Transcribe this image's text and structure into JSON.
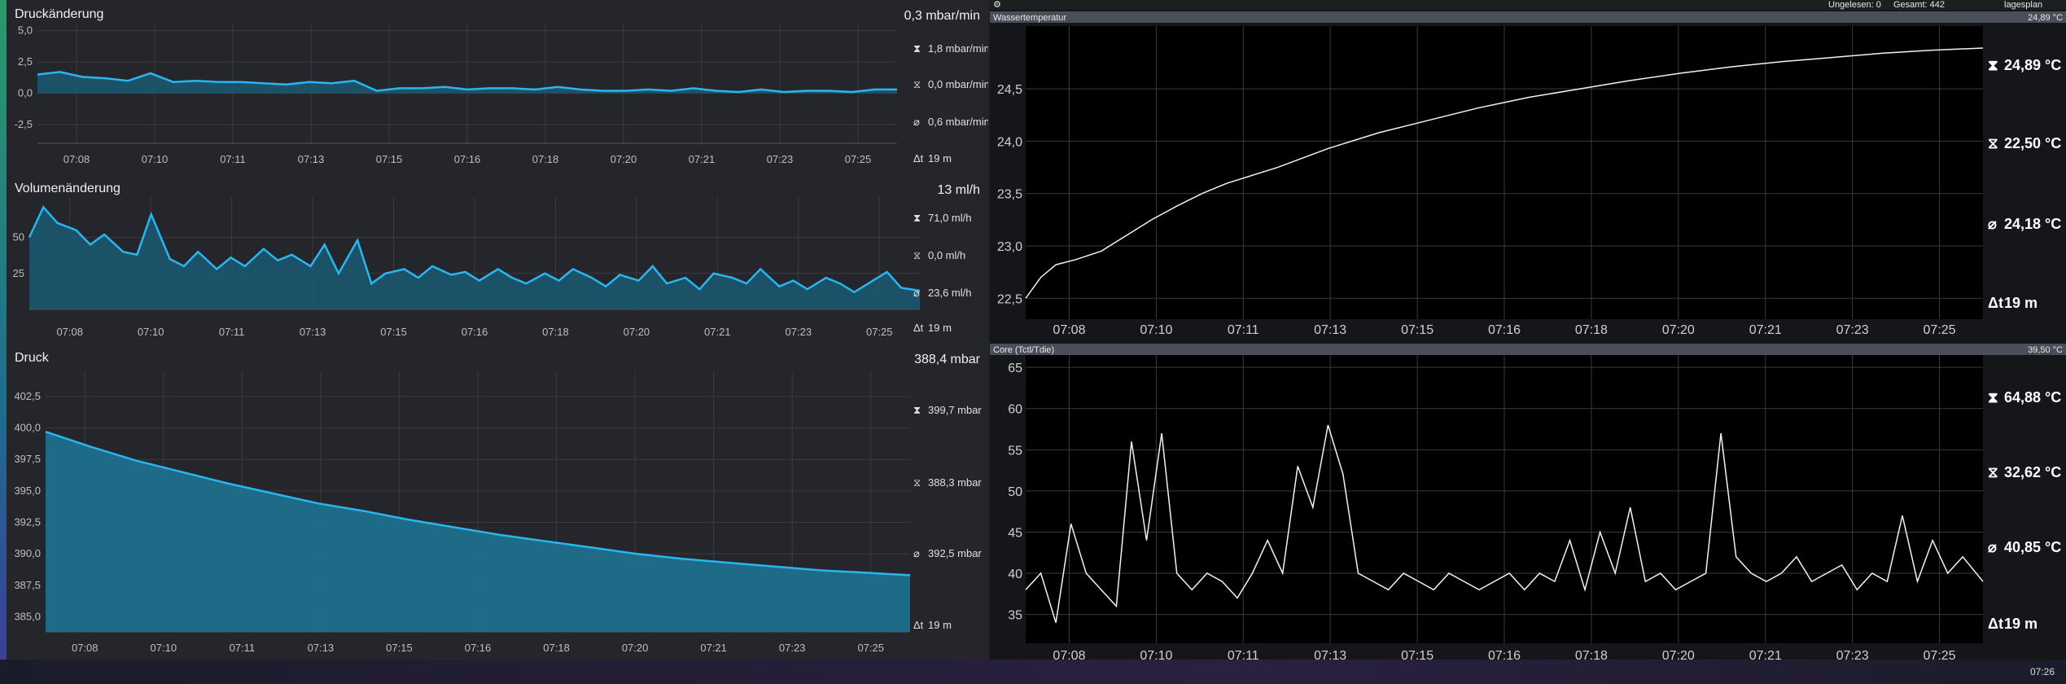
{
  "topbar": {
    "unread": "Ungelesen: 0",
    "total": "Gesamt: 442",
    "menu": "lagesplan"
  },
  "taskbar": {
    "clock": "07:26"
  },
  "chart_data": [
    {
      "type": "area",
      "title": "Druckänderung",
      "current": "0,3 mbar/min",
      "y_ticks": [
        "5,0",
        "2,5",
        "0,0",
        "-2,5"
      ],
      "ylim": [
        -4.0,
        5.5
      ],
      "x_ticks": [
        "07:08",
        "07:10",
        "07:11",
        "07:13",
        "07:15",
        "07:16",
        "07:18",
        "07:20",
        "07:21",
        "07:23",
        "07:25"
      ],
      "xlim": [
        0,
        19
      ],
      "stats": {
        "max": "1,8 mbar/min",
        "min": "0,0 mbar/min",
        "avg": "0,6 mbar/min",
        "span": "19 m"
      },
      "x": [
        0,
        0.5,
        1,
        1.5,
        2,
        2.5,
        3,
        3.5,
        4,
        4.5,
        5,
        5.5,
        6,
        6.5,
        7,
        7.5,
        8,
        8.5,
        9,
        9.5,
        10,
        10.5,
        11,
        11.5,
        12,
        12.5,
        13,
        13.5,
        14,
        14.5,
        15,
        15.5,
        16,
        16.5,
        17,
        17.5,
        18,
        18.5,
        19
      ],
      "values": [
        1.5,
        1.7,
        1.3,
        1.2,
        1.0,
        1.6,
        0.9,
        1.0,
        0.9,
        0.9,
        0.8,
        0.7,
        0.9,
        0.8,
        1.0,
        0.2,
        0.4,
        0.4,
        0.5,
        0.3,
        0.4,
        0.4,
        0.3,
        0.5,
        0.3,
        0.2,
        0.2,
        0.3,
        0.2,
        0.4,
        0.2,
        0.1,
        0.3,
        0.1,
        0.2,
        0.2,
        0.1,
        0.3,
        0.3
      ]
    },
    {
      "type": "area",
      "title": "Volumenänderung",
      "current": "13 ml/h",
      "y_ticks": [
        "50",
        "25"
      ],
      "ylim": [
        0,
        78
      ],
      "x_ticks": [
        "07:08",
        "07:10",
        "07:11",
        "07:13",
        "07:15",
        "07:16",
        "07:18",
        "07:20",
        "07:21",
        "07:23",
        "07:25"
      ],
      "xlim": [
        0,
        19
      ],
      "stats": {
        "max": "71,0 ml/h",
        "min": "0,0 ml/h",
        "avg": "23,6 ml/h",
        "span": "19 m"
      },
      "x": [
        0,
        0.3,
        0.6,
        1,
        1.3,
        1.6,
        2,
        2.3,
        2.6,
        3,
        3.3,
        3.6,
        4,
        4.3,
        4.6,
        5,
        5.3,
        5.6,
        6,
        6.3,
        6.6,
        7,
        7.3,
        7.6,
        8,
        8.3,
        8.6,
        9,
        9.3,
        9.6,
        10,
        10.3,
        10.6,
        11,
        11.3,
        11.6,
        12,
        12.3,
        12.6,
        13,
        13.3,
        13.6,
        14,
        14.3,
        14.6,
        15,
        15.3,
        15.6,
        16,
        16.3,
        16.6,
        17,
        17.3,
        17.6,
        18,
        18.3,
        18.6,
        19
      ],
      "values": [
        50,
        71,
        60,
        55,
        45,
        52,
        40,
        38,
        66,
        35,
        30,
        40,
        28,
        36,
        30,
        42,
        34,
        38,
        30,
        45,
        25,
        48,
        18,
        25,
        28,
        22,
        30,
        24,
        26,
        20,
        28,
        22,
        18,
        25,
        20,
        28,
        22,
        16,
        24,
        20,
        30,
        18,
        22,
        14,
        25,
        22,
        18,
        28,
        16,
        20,
        14,
        22,
        18,
        12,
        20,
        26,
        15,
        13
      ]
    },
    {
      "type": "area",
      "title": "Druck",
      "current": "388,4 mbar",
      "y_ticks": [
        "402,5",
        "400,0",
        "397,5",
        "395,0",
        "392,5",
        "390,0",
        "387,5",
        "385,0"
      ],
      "ylim": [
        383.8,
        404.5
      ],
      "x_ticks": [
        "07:08",
        "07:10",
        "07:11",
        "07:13",
        "07:15",
        "07:16",
        "07:18",
        "07:20",
        "07:21",
        "07:23",
        "07:25"
      ],
      "xlim": [
        0,
        19
      ],
      "stats": {
        "max": "399,7 mbar",
        "min": "388,3 mbar",
        "avg": "392,5 mbar",
        "span": "19 m"
      },
      "x": [
        0,
        1,
        2,
        3,
        4,
        5,
        6,
        7,
        8,
        9,
        10,
        11,
        12,
        13,
        14,
        15,
        16,
        17,
        18,
        19
      ],
      "values": [
        399.7,
        398.5,
        397.4,
        396.5,
        395.6,
        394.8,
        394.0,
        393.4,
        392.7,
        392.1,
        391.5,
        391.0,
        390.5,
        390.0,
        389.6,
        389.3,
        389.0,
        388.7,
        388.5,
        388.3
      ]
    },
    {
      "type": "line",
      "title": "Wassertemperatur",
      "current": "24,89 °C",
      "y_ticks": [
        "24,5",
        "24,0",
        "23,5",
        "23,0",
        "22,5"
      ],
      "ylim": [
        22.3,
        25.1
      ],
      "x_ticks": [
        "07:08",
        "07:10",
        "07:11",
        "07:13",
        "07:15",
        "07:16",
        "07:18",
        "07:20",
        "07:21",
        "07:23",
        "07:25"
      ],
      "xlim": [
        0,
        19
      ],
      "stats": {
        "max": "24,89 °C",
        "min": "22,50 °C",
        "avg": "24,18 °C",
        "span": "19 m"
      },
      "x": [
        0,
        0.3,
        0.6,
        1,
        1.5,
        2,
        2.5,
        3,
        3.5,
        4,
        5,
        6,
        7,
        8,
        9,
        10,
        11,
        12,
        13,
        14,
        15,
        16,
        17,
        18,
        19
      ],
      "values": [
        22.5,
        22.7,
        22.82,
        22.87,
        22.95,
        23.1,
        23.25,
        23.38,
        23.5,
        23.6,
        23.75,
        23.93,
        24.08,
        24.2,
        24.32,
        24.42,
        24.5,
        24.58,
        24.65,
        24.71,
        24.76,
        24.8,
        24.84,
        24.87,
        24.89
      ]
    },
    {
      "type": "line",
      "title": "Core (Tctl/Tdie)",
      "current": "39,50 °C",
      "y_ticks": [
        "65",
        "60",
        "55",
        "50",
        "45",
        "40",
        "35"
      ],
      "ylim": [
        31.5,
        66.5
      ],
      "x_ticks": [
        "07:08",
        "07:10",
        "07:11",
        "07:13",
        "07:15",
        "07:16",
        "07:18",
        "07:20",
        "07:21",
        "07:23",
        "07:25"
      ],
      "xlim": [
        0,
        19
      ],
      "stats": {
        "max": "64,88 °C",
        "min": "32,62 °C",
        "avg": "40,85 °C",
        "span": "19 m"
      },
      "x": [
        0,
        0.3,
        0.6,
        0.9,
        1.2,
        1.5,
        1.8,
        2.1,
        2.4,
        2.7,
        3.0,
        3.3,
        3.6,
        3.9,
        4.2,
        4.5,
        4.8,
        5.1,
        5.4,
        5.7,
        6.0,
        6.3,
        6.6,
        6.9,
        7.2,
        7.5,
        7.8,
        8.1,
        8.4,
        8.7,
        9.0,
        9.3,
        9.6,
        9.9,
        10.2,
        10.5,
        10.8,
        11.1,
        11.4,
        11.7,
        12.0,
        12.3,
        12.6,
        12.9,
        13.2,
        13.5,
        13.8,
        14.1,
        14.4,
        14.7,
        15.0,
        15.3,
        15.6,
        15.9,
        16.2,
        16.5,
        16.8,
        17.1,
        17.4,
        17.7,
        18.0,
        18.3,
        18.6,
        19.0
      ],
      "values": [
        38,
        40,
        34,
        46,
        40,
        38,
        36,
        56,
        44,
        57,
        40,
        38,
        40,
        39,
        37,
        40,
        44,
        40,
        53,
        48,
        58,
        52,
        40,
        39,
        38,
        40,
        39,
        38,
        40,
        39,
        38,
        39,
        40,
        38,
        40,
        39,
        44,
        38,
        45,
        40,
        48,
        39,
        40,
        38,
        39,
        40,
        57,
        42,
        40,
        39,
        40,
        42,
        39,
        40,
        41,
        38,
        40,
        39,
        47,
        39,
        44,
        40,
        42,
        39
      ]
    }
  ]
}
